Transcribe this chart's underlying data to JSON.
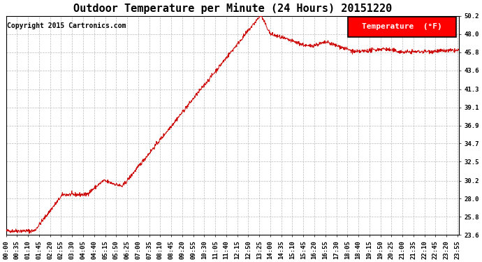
{
  "title": "Outdoor Temperature per Minute (24 Hours) 20151220",
  "copyright": "Copyright 2015 Cartronics.com",
  "legend_label": "Temperature  (°F)",
  "line_color": "#cc0000",
  "background_color": "#ffffff",
  "grid_color": "#bbbbbb",
  "yticks": [
    23.6,
    25.8,
    28.0,
    30.2,
    32.5,
    34.7,
    36.9,
    39.1,
    41.3,
    43.6,
    45.8,
    48.0,
    50.2
  ],
  "ymin": 23.6,
  "ymax": 50.2,
  "xtick_labels": [
    "00:00",
    "00:35",
    "01:10",
    "01:45",
    "02:20",
    "02:55",
    "03:30",
    "04:05",
    "04:40",
    "05:15",
    "05:50",
    "06:25",
    "07:00",
    "07:35",
    "08:10",
    "08:45",
    "09:20",
    "09:55",
    "10:30",
    "11:05",
    "11:40",
    "12:15",
    "12:50",
    "13:25",
    "14:00",
    "14:35",
    "15:10",
    "15:45",
    "16:20",
    "16:55",
    "17:30",
    "18:05",
    "18:40",
    "19:15",
    "19:50",
    "20:25",
    "21:00",
    "21:35",
    "22:10",
    "22:45",
    "23:20",
    "23:55"
  ],
  "title_fontsize": 11,
  "axis_fontsize": 6.5,
  "copyright_fontsize": 7
}
